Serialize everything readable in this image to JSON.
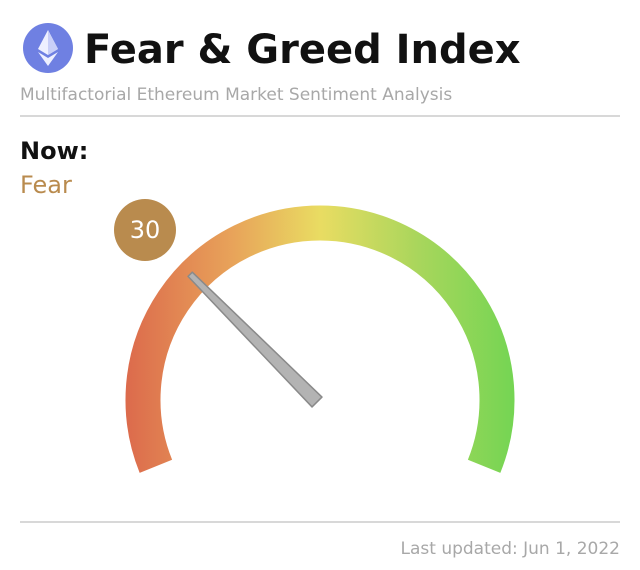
{
  "chart_data": {
    "type": "gauge",
    "title": "Fear & Greed Index",
    "subtitle": "Multifactorial Ethereum Market Sentiment Analysis",
    "now_label": "Now:",
    "classification": "Fear",
    "value": 30,
    "ylim": [
      0,
      100
    ],
    "color": "#b98b4e",
    "updated": "Last updated: Jun 1, 2022"
  }
}
